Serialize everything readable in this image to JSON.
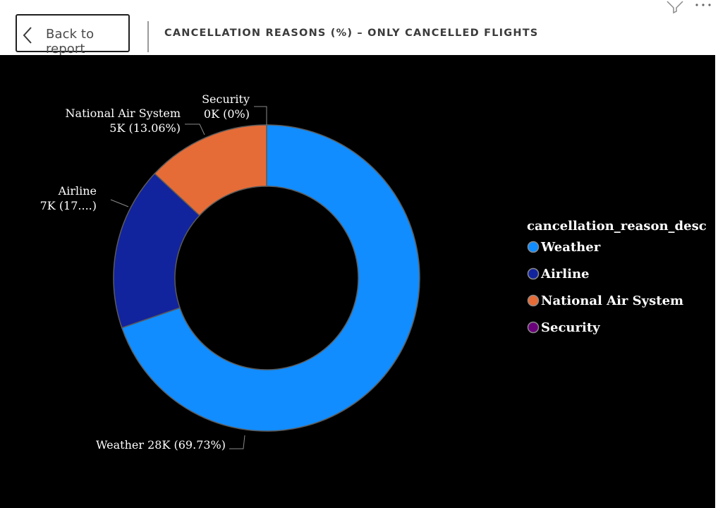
{
  "header": {
    "back_label": "Back to report",
    "title": "CANCELLATION REASONS (%) – ONLY CANCELLED FLIGHTS"
  },
  "icons": {
    "back": "chevron-left-icon",
    "filter": "filter-icon",
    "more": "more-options-icon"
  },
  "colors": {
    "background": "#000000",
    "Weather": "#118DFF",
    "Airline": "#12239E",
    "National Air System": "#E66C37",
    "Security": "#6B007B",
    "slice_border": "#5a5a5a",
    "label_text": "#ffffff"
  },
  "chart_data": {
    "type": "donut",
    "legend_title": "cancellation_reason_desc",
    "legend_position": "right",
    "series": [
      {
        "name": "Weather",
        "value": 69.73,
        "label_line1": "Weather 28K (69.73%)",
        "label_line2": ""
      },
      {
        "name": "Airline",
        "value": 17.21,
        "label_line1": "Airline",
        "label_line2": "7K (17....)"
      },
      {
        "name": "National Air System",
        "value": 13.06,
        "label_line1": "National Air System",
        "label_line2": "5K (13.06%)"
      },
      {
        "name": "Security",
        "value": 0.0,
        "label_line1": "Security",
        "label_line2": "0K (0%)"
      }
    ]
  }
}
